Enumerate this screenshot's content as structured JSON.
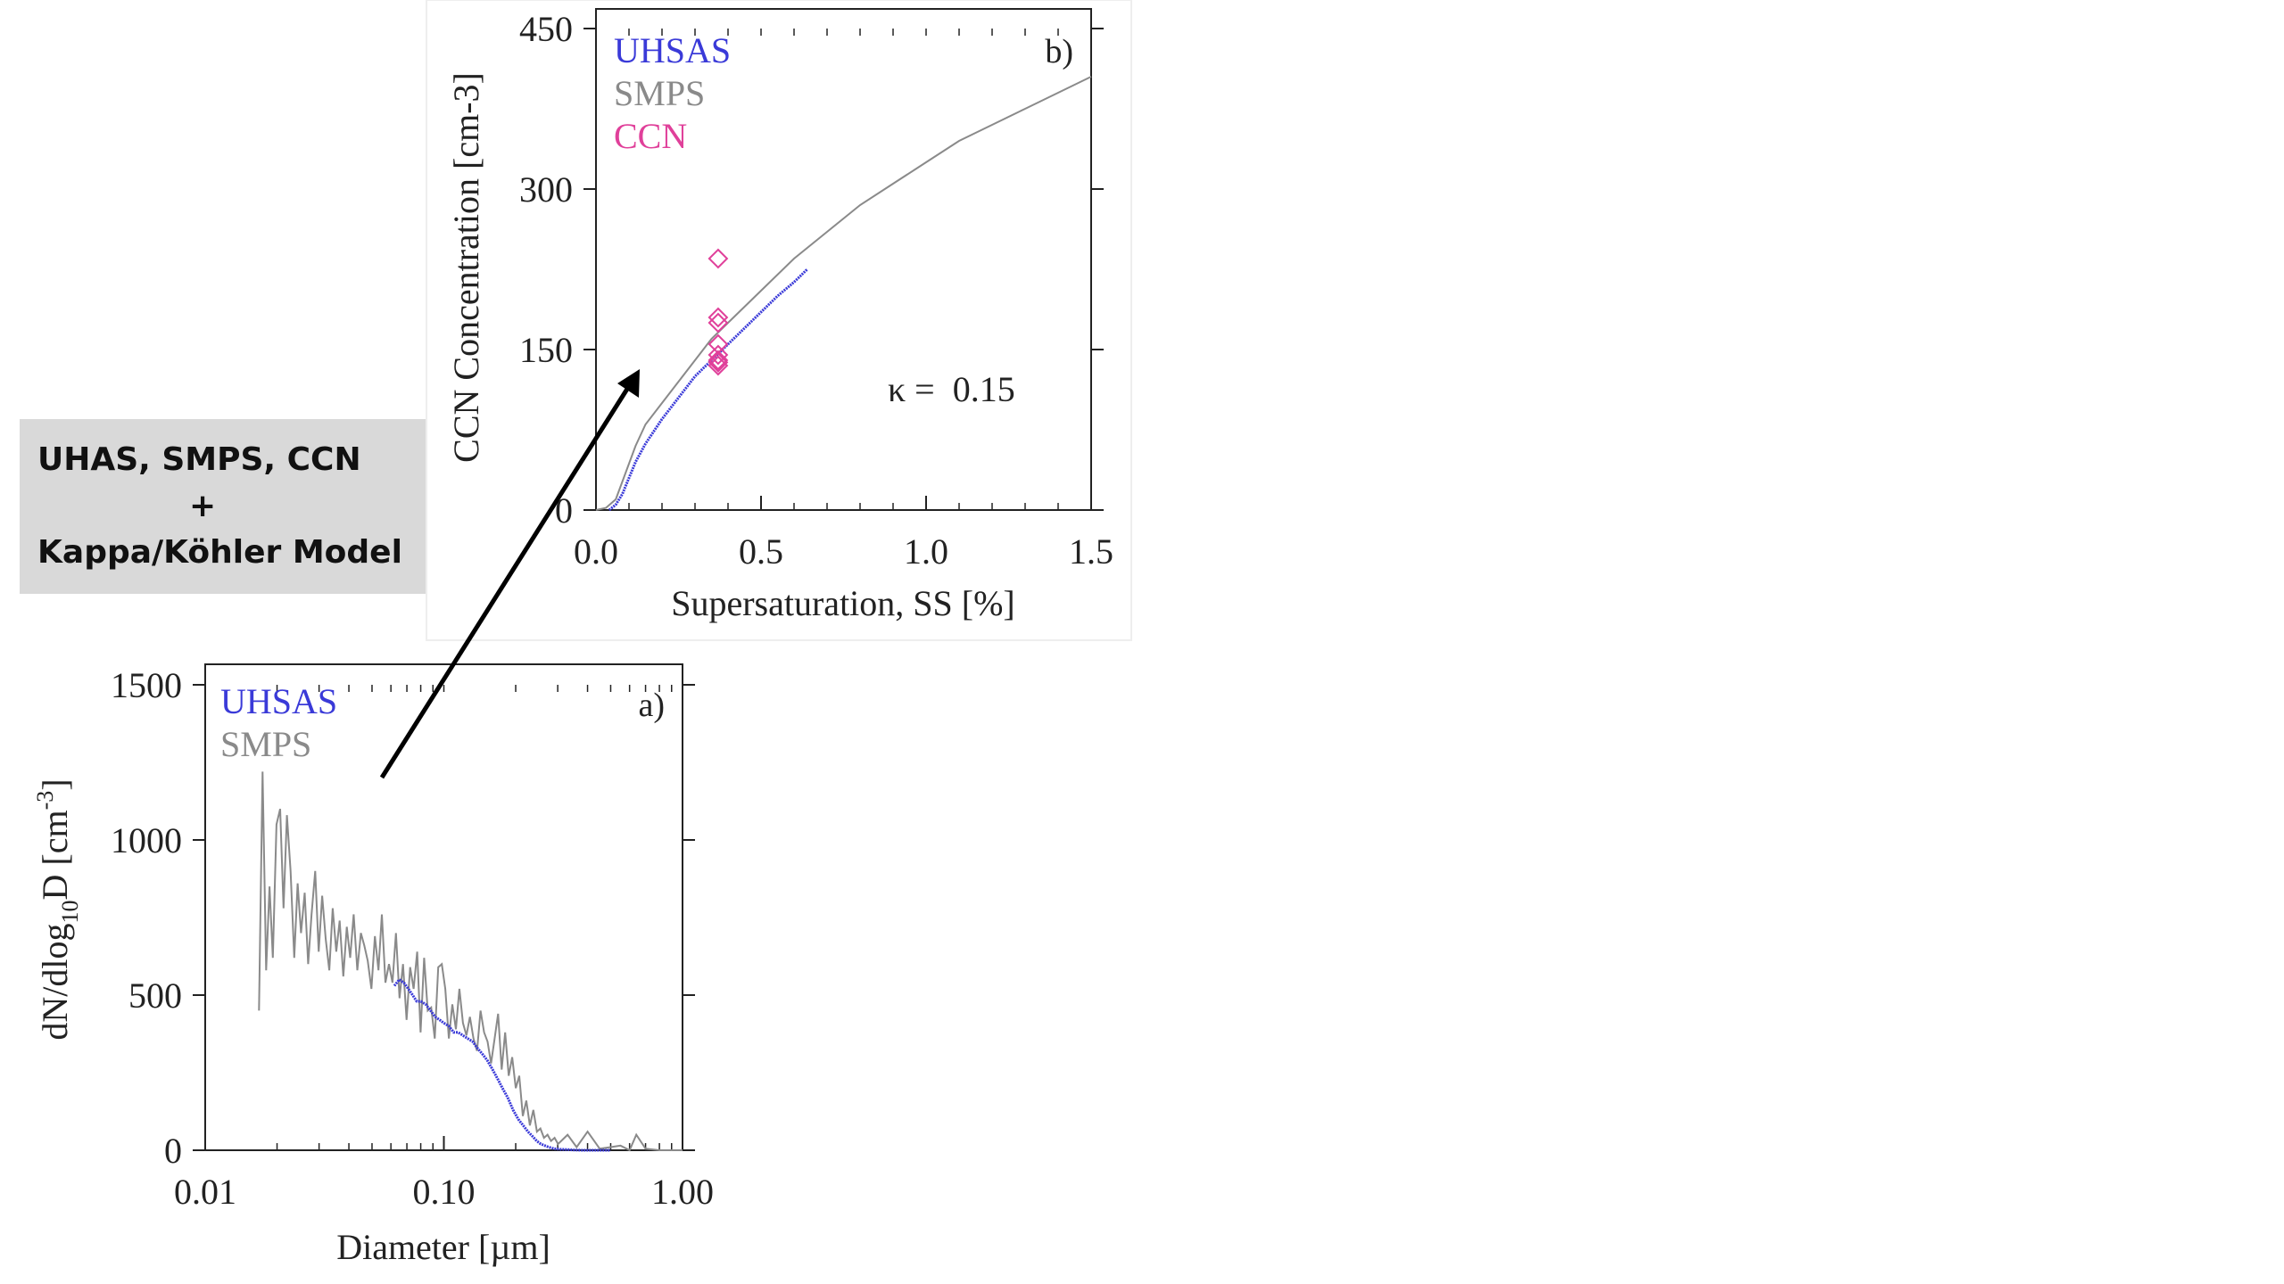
{
  "label_box": {
    "line1": "UHAS, SMPS, CCN",
    "line2": "+",
    "line3": "Kappa/Köhler Model"
  },
  "colors": {
    "uhsas": "#3a3ad8",
    "smps": "#8a8a8a",
    "ccn": "#e0409a",
    "axis": "#222222",
    "arrow": "#000000"
  },
  "chart_data": [
    {
      "id": "a",
      "type": "line",
      "panel_label": "a)",
      "xlabel": "Diameter [µm]",
      "ylabel": "dN/dlog10D [cm-3]",
      "xscale": "log",
      "xlim": [
        0.01,
        1.0
      ],
      "ylim": [
        0,
        1500
      ],
      "xticks": [
        0.01,
        0.1,
        1.0
      ],
      "xtick_labels": [
        "0.01",
        "0.10",
        "1.00"
      ],
      "yticks": [
        0,
        500,
        1000,
        1500
      ],
      "ytick_labels": [
        "0",
        "500",
        "1000",
        "1500"
      ],
      "legend": [
        "UHSAS",
        "SMPS"
      ],
      "legend_position": "top-left",
      "series": [
        {
          "name": "SMPS",
          "x": [
            0.0168,
            0.0174,
            0.018,
            0.0186,
            0.0192,
            0.0199,
            0.0206,
            0.0213,
            0.022,
            0.0228,
            0.0236,
            0.0244,
            0.0252,
            0.0261,
            0.027,
            0.0279,
            0.0289,
            0.0299,
            0.0309,
            0.032,
            0.0331,
            0.0342,
            0.0354,
            0.0366,
            0.0379,
            0.0392,
            0.0405,
            0.0419,
            0.0434,
            0.0449,
            0.0464,
            0.048,
            0.0497,
            0.0514,
            0.0532,
            0.055,
            0.0569,
            0.0589,
            0.0609,
            0.063,
            0.0652,
            0.0674,
            0.0698,
            0.0722,
            0.0747,
            0.0773,
            0.0799,
            0.0827,
            0.0856,
            0.0885,
            0.0916,
            0.0947,
            0.098,
            0.1014,
            0.1049,
            0.1085,
            0.1123,
            0.1162,
            0.1202,
            0.1243,
            0.1286,
            0.1331,
            0.1377,
            0.1424,
            0.1474,
            0.1525,
            0.1577,
            0.1632,
            0.1688,
            0.1747,
            0.1807,
            0.187,
            0.1934,
            0.2001,
            0.207,
            0.2142,
            0.2216,
            0.2293,
            0.2372,
            0.2454,
            0.2539,
            0.2627,
            0.2718,
            0.2812,
            0.2909,
            0.301,
            0.33,
            0.36,
            0.4,
            0.45,
            0.5,
            0.55,
            0.6,
            0.64,
            0.7,
            0.8,
            1.0
          ],
          "y": [
            450,
            1220,
            580,
            850,
            620,
            1050,
            1100,
            780,
            1080,
            900,
            620,
            860,
            700,
            830,
            600,
            760,
            900,
            640,
            820,
            680,
            580,
            780,
            640,
            740,
            560,
            720,
            620,
            760,
            580,
            700,
            660,
            610,
            520,
            690,
            580,
            760,
            540,
            600,
            540,
            700,
            490,
            600,
            420,
            590,
            520,
            640,
            380,
            620,
            450,
            460,
            360,
            590,
            600,
            520,
            360,
            470,
            390,
            520,
            410,
            370,
            430,
            360,
            320,
            450,
            380,
            350,
            280,
            360,
            440,
            260,
            380,
            240,
            300,
            200,
            240,
            110,
            160,
            80,
            130,
            60,
            70,
            40,
            50,
            30,
            40,
            20,
            50,
            10,
            60,
            5,
            10,
            15,
            0,
            50,
            5,
            0,
            0
          ]
        },
        {
          "name": "UHSAS",
          "x": [
            0.062,
            0.065,
            0.068,
            0.071,
            0.074,
            0.077,
            0.08,
            0.084,
            0.088,
            0.092,
            0.096,
            0.1,
            0.105,
            0.11,
            0.115,
            0.12,
            0.126,
            0.132,
            0.138,
            0.145,
            0.152,
            0.16,
            0.168,
            0.176,
            0.185,
            0.195,
            0.205,
            0.215,
            0.225,
            0.235,
            0.245,
            0.255,
            0.265,
            0.275,
            0.29,
            0.31,
            0.33,
            0.35,
            0.38,
            0.42,
            0.46,
            0.5
          ],
          "y": [
            530,
            550,
            540,
            520,
            500,
            480,
            480,
            470,
            450,
            430,
            420,
            410,
            400,
            380,
            380,
            370,
            360,
            350,
            330,
            310,
            290,
            260,
            230,
            200,
            170,
            130,
            100,
            80,
            60,
            45,
            30,
            20,
            15,
            10,
            5,
            3,
            2,
            1,
            0,
            0,
            0,
            0
          ]
        }
      ]
    },
    {
      "id": "b",
      "type": "line",
      "panel_label": "b)",
      "xlabel": "Supersaturation, SS [%]",
      "ylabel": "CCN Concentration [cm-3]",
      "xlim": [
        0,
        1.5
      ],
      "ylim": [
        0,
        450
      ],
      "xticks": [
        0,
        0.5,
        1.0,
        1.5
      ],
      "xtick_labels": [
        "0.0",
        "0.5",
        "1.0",
        "1.5"
      ],
      "yticks": [
        0,
        150,
        300,
        450
      ],
      "ytick_labels": [
        "0",
        "150",
        "300",
        "450"
      ],
      "legend": [
        "UHSAS",
        "SMPS",
        "CCN"
      ],
      "legend_position": "top-left",
      "annotation": "κ =  0.15",
      "series": [
        {
          "name": "SMPS",
          "x": [
            0.0,
            0.03,
            0.06,
            0.09,
            0.12,
            0.15,
            0.2,
            0.25,
            0.3,
            0.35,
            0.4,
            0.5,
            0.6,
            0.7,
            0.8,
            0.9,
            1.0,
            1.1,
            1.2,
            1.3,
            1.4,
            1.5
          ],
          "y": [
            0,
            2,
            10,
            35,
            60,
            80,
            100,
            120,
            140,
            160,
            175,
            205,
            235,
            260,
            285,
            305,
            325,
            345,
            360,
            375,
            390,
            405
          ]
        },
        {
          "name": "UHSAS",
          "x": [
            0.04,
            0.06,
            0.08,
            0.1,
            0.12,
            0.15,
            0.2,
            0.25,
            0.3,
            0.35,
            0.4,
            0.45,
            0.5,
            0.55,
            0.6,
            0.64
          ],
          "y": [
            0,
            5,
            15,
            30,
            45,
            62,
            85,
            105,
            125,
            140,
            155,
            170,
            185,
            200,
            213,
            225
          ]
        },
        {
          "name": "CCN",
          "type": "scatter",
          "marker": "diamond",
          "x": [
            0.37,
            0.37,
            0.37,
            0.37,
            0.37,
            0.37,
            0.37,
            0.37
          ],
          "y": [
            235,
            180,
            175,
            155,
            145,
            140,
            138,
            135
          ]
        }
      ]
    }
  ]
}
